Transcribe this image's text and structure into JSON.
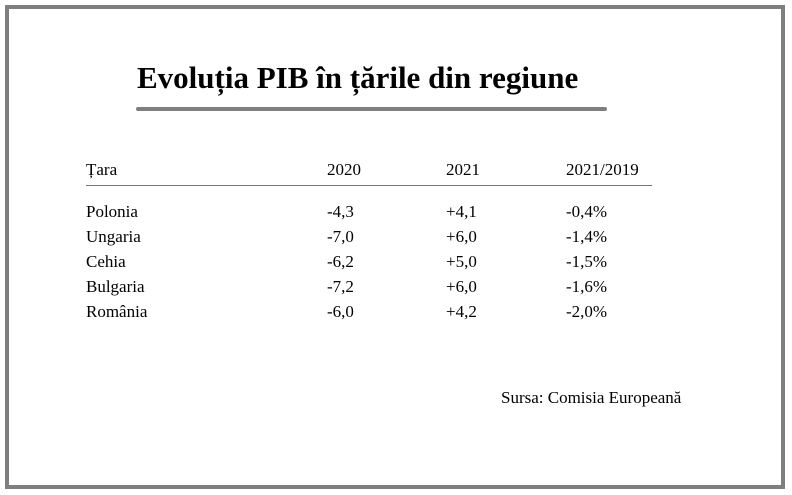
{
  "title": "Evoluția PIB în țările din regiune",
  "table": {
    "headers": [
      "Țara",
      "2020",
      "2021",
      "2021/2019"
    ],
    "rows": [
      [
        "Polonia",
        "-4,3",
        "+4,1",
        "-0,4%"
      ],
      [
        "Ungaria",
        "-7,0",
        "+6,0",
        "-1,4%"
      ],
      [
        "Cehia",
        "-6,2",
        "+5,0",
        "-1,5%"
      ],
      [
        "Bulgaria",
        "-7,2",
        "+6,0",
        "-1,6%"
      ],
      [
        "România",
        "-6,0",
        "+4,2",
        "-2,0%"
      ]
    ]
  },
  "source": "Sursa: Comisia Europeană",
  "colors": {
    "frame": "#7f7f7f",
    "title_rule": "#7f7f7f",
    "header_rule": "#777777",
    "text": "#000000"
  }
}
